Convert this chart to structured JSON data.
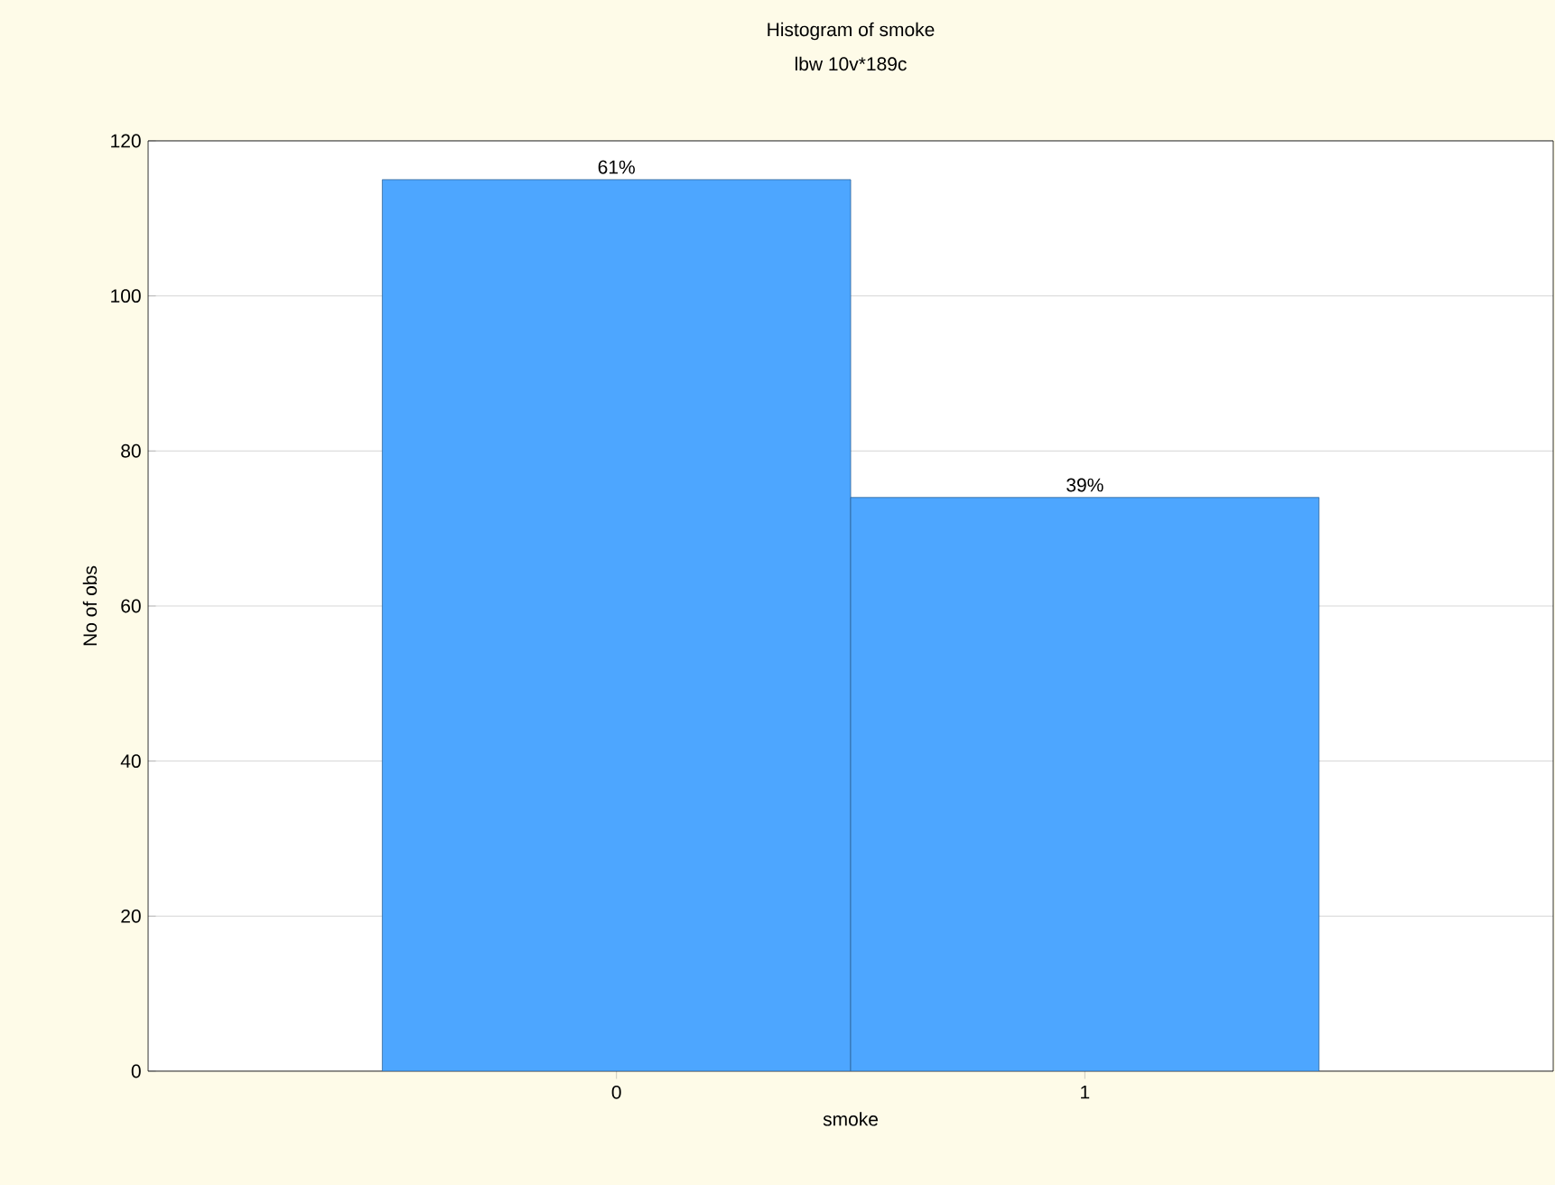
{
  "chart_data": {
    "type": "bar",
    "title": "Histogram of smoke",
    "subtitle": "lbw 10v*189c",
    "xlabel": "smoke",
    "ylabel": "No of obs",
    "categories": [
      "0",
      "1"
    ],
    "values": [
      115,
      74
    ],
    "color": "#4da6ff",
    "annotations": [
      {
        "text": "61%",
        "x": "0",
        "y": 115
      },
      {
        "text": "39%",
        "x": "1",
        "y": 74
      }
    ],
    "ylim": [
      0,
      120
    ],
    "yticks": [
      0,
      20,
      40,
      60,
      80,
      100,
      120
    ],
    "grid": "y"
  }
}
